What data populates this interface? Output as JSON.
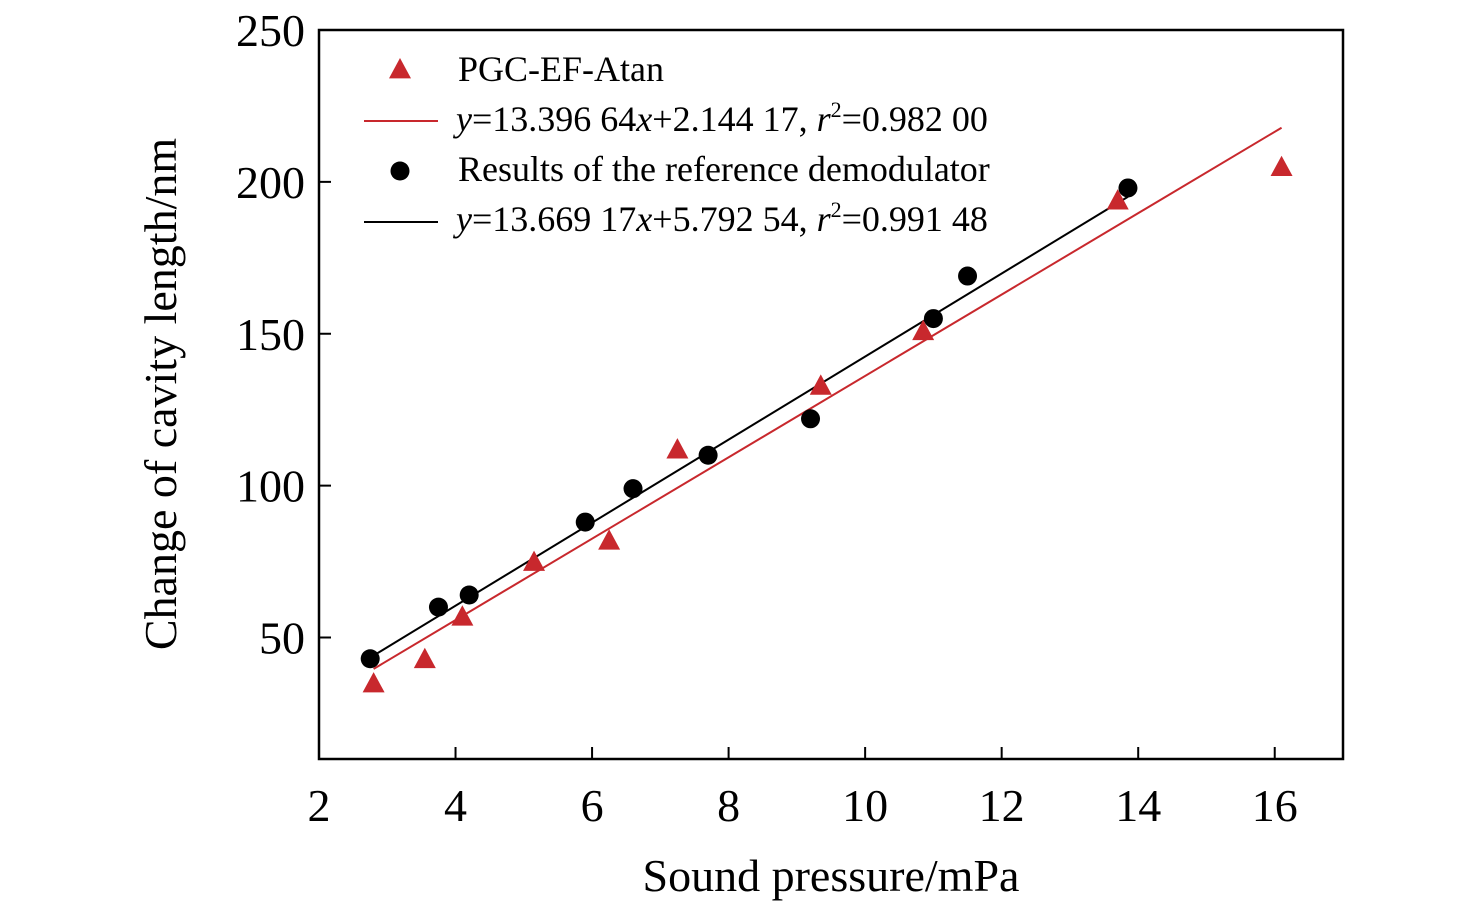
{
  "chart_data": {
    "type": "scatter",
    "xlabel": "Sound pressure/mPa",
    "ylabel": "Change of cavity length/nm",
    "xlim": [
      2,
      17
    ],
    "ylim": [
      10,
      250
    ],
    "xticks": [
      2,
      4,
      6,
      8,
      10,
      12,
      14,
      16
    ],
    "yticks": [
      50,
      100,
      150,
      200,
      250
    ],
    "legend_position": "top-left",
    "grid": false,
    "series": [
      {
        "name": "PGC-EF-Atan",
        "marker": "triangle",
        "color": "#c8282d",
        "x": [
          2.8,
          3.55,
          4.1,
          5.15,
          6.25,
          7.25,
          9.35,
          10.85,
          13.7,
          16.1
        ],
        "y": [
          35,
          43,
          57,
          75,
          82,
          112,
          133,
          151,
          194,
          205
        ]
      },
      {
        "name": "Results of the reference demodulator",
        "marker": "circle",
        "color": "#000000",
        "x": [
          2.75,
          3.75,
          4.2,
          5.9,
          6.6,
          7.7,
          9.2,
          11.0,
          11.5,
          13.85
        ],
        "y": [
          43,
          60,
          64,
          88,
          99,
          110,
          122,
          155,
          169,
          198
        ]
      }
    ],
    "fits": [
      {
        "series": "PGC-EF-Atan",
        "color": "#c8282d",
        "slope": 13.39664,
        "intercept": 2.14417,
        "x_range": [
          2.8,
          16.1
        ],
        "label_parts": [
          "y",
          "=13.396 64",
          "x",
          "+2.144 17,  ",
          "r",
          "2",
          "=0.982 00"
        ]
      },
      {
        "series": "Results of the reference demodulator",
        "color": "#000000",
        "slope": 13.66917,
        "intercept": 5.79254,
        "x_range": [
          2.75,
          13.85
        ],
        "label_parts": [
          "y",
          "=13.669 17",
          "x",
          "+5.792 54, ",
          "r",
          "2",
          "=0.991 48"
        ]
      }
    ]
  }
}
